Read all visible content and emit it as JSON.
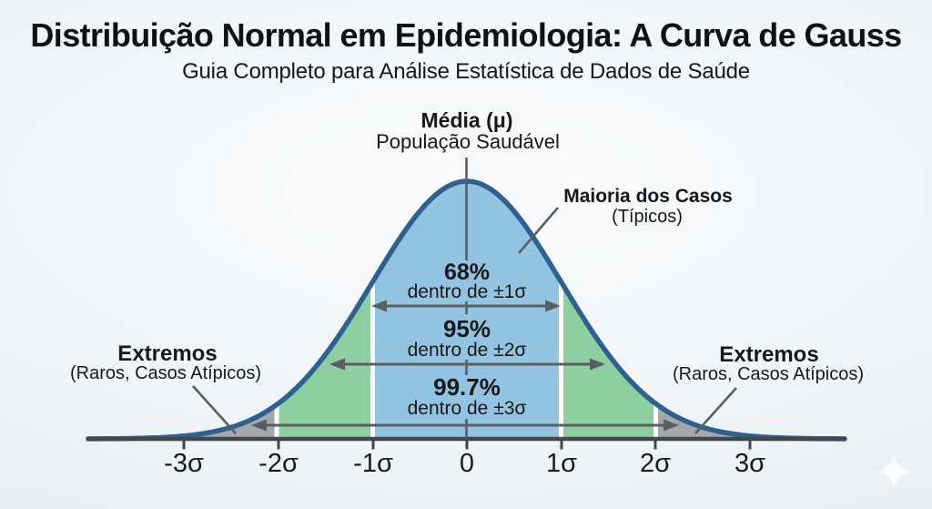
{
  "header": {
    "title": "Distribuição Normal em Epidemiologia: A Curva de Gauss",
    "subtitle": "Guia Completo para Análise Estatística de Dados de Saúde"
  },
  "annotations": {
    "mean": {
      "title": "Média (μ)",
      "subtitle": "População Saudável"
    },
    "majority": {
      "title": "Maioria dos Casos",
      "subtitle": "(Típicos)"
    },
    "extremes_left": {
      "title": "Extremos",
      "subtitle": "(Raros, Casos Atípicos)"
    },
    "extremes_right": {
      "title": "Extremos",
      "subtitle": "(Raros, Casos Atípicos)"
    }
  },
  "chart_data": {
    "type": "area",
    "title": "Distribuição Normal em Epidemiologia: A Curva de Gauss",
    "subtitle": "Guia Completo para Análise Estatística de Dados de Saúde",
    "distribution": "normal (gaussian), centered at mean μ = 0, x in units of σ",
    "x_tick_labels": [
      "-3σ",
      "-2σ",
      "-1σ",
      "0",
      "1σ",
      "2σ",
      "3σ"
    ],
    "x_tick_values": [
      -3,
      -2,
      -1,
      0,
      1,
      2,
      3
    ],
    "xlim": [
      -4,
      4
    ],
    "grid": "off",
    "legend": "none (direct labels with pointer lines)",
    "peak_annotation": "Média (μ) — População Saudável",
    "coverage_bands": [
      {
        "percent": "68%",
        "label": "dentro de ±1σ",
        "from_sigma": -1,
        "to_sigma": 1
      },
      {
        "percent": "95%",
        "label": "dentro de ±2σ",
        "from_sigma": -2,
        "to_sigma": 2
      },
      {
        "percent": "99.7%",
        "label": "dentro de ±3σ",
        "from_sigma": -3,
        "to_sigma": 3
      }
    ],
    "regions": [
      {
        "zone": "tail-left",
        "from_sigma": -4,
        "to_sigma": -2,
        "color": "#a6a7ab",
        "meaning": "Extremos (Raros, Casos Atípicos)"
      },
      {
        "zone": "mid-left",
        "from_sigma": -2,
        "to_sigma": -1,
        "color": "#8ecfa2",
        "meaning": ""
      },
      {
        "zone": "central",
        "from_sigma": -1,
        "to_sigma": 1,
        "color": "#92c4e2",
        "meaning": "Maioria dos Casos (Típicos)"
      },
      {
        "zone": "mid-right",
        "from_sigma": 1,
        "to_sigma": 2,
        "color": "#8ecfa2",
        "meaning": ""
      },
      {
        "zone": "tail-right",
        "from_sigma": 2,
        "to_sigma": 4,
        "color": "#a6a7ab",
        "meaning": "Extremos (Raros, Casos Atípicos)"
      }
    ],
    "colors": {
      "curve_stroke": "#2c6191",
      "central_band": "#92c4e2",
      "mid_band": "#8ecfa2",
      "tail_band": "#a6a7ab",
      "band_gap": "#ffffff",
      "axis": "#43474b",
      "arrow": "#595e62",
      "text": "#17181a"
    }
  }
}
